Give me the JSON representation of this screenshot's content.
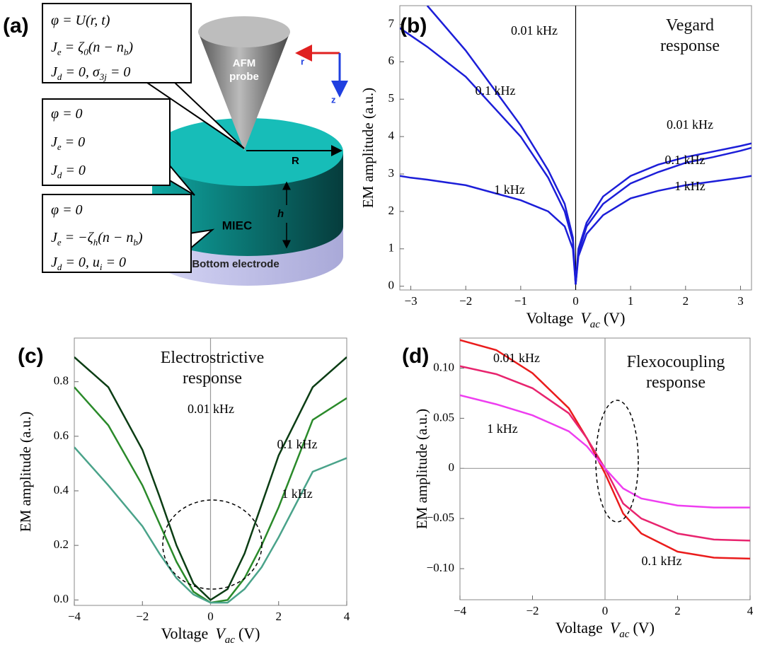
{
  "diagram": {
    "panel_label": "(a)",
    "boxes": [
      [
        [
          "φ = U(r, t)"
        ],
        [
          "J",
          {
            "sub": "e"
          },
          " = ζ",
          {
            "sub": "0"
          },
          "(n − n",
          {
            "sub": "b"
          },
          ")"
        ],
        [
          "J",
          {
            "sub": "d"
          },
          " = 0, σ",
          {
            "sub": "3j"
          },
          " = 0"
        ]
      ],
      [
        [
          "φ = 0"
        ],
        [
          "J",
          {
            "sub": "e"
          },
          " = 0"
        ],
        [
          "J",
          {
            "sub": "d"
          },
          " = 0"
        ]
      ],
      [
        [
          "φ = 0"
        ],
        [
          "J",
          {
            "sub": "e"
          },
          " = −ζ",
          {
            "sub": "h"
          },
          "(n − n",
          {
            "sub": "b"
          },
          ")"
        ],
        [
          "J",
          {
            "sub": "d"
          },
          " = 0, u",
          {
            "sub": "i"
          },
          " = 0"
        ]
      ]
    ],
    "probe_label": "AFM probe",
    "radius_label": "R",
    "height_label": "h",
    "layer_label": "MIEC",
    "electrode_label": "Bottom electrode",
    "axis_r": "r",
    "axis_z": "z"
  },
  "chart_data": [
    {
      "type": "line",
      "panel_label": "(b)",
      "title": "Vegard response",
      "ylabel": "EM amplitude (a.u.)",
      "xlabel": {
        "text": "Voltage",
        "var": "V",
        "sub": "ac",
        "unit": "(V)"
      },
      "x": [
        -3.2,
        -3,
        -2.7,
        -2,
        -1.5,
        -1,
        -0.5,
        -0.2,
        -0.05,
        0,
        0.05,
        0.2,
        0.5,
        1,
        1.5,
        2,
        2.5,
        3,
        3.2
      ],
      "series": [
        {
          "name": "0.01 kHz",
          "color": "#1c1ed8",
          "values": [
            null,
            null,
            7.5,
            6.3,
            5.3,
            4.3,
            3.1,
            2.2,
            1.3,
            0.05,
            1.0,
            1.7,
            2.4,
            2.95,
            3.25,
            3.45,
            3.6,
            3.75,
            3.82
          ]
        },
        {
          "name": "0.1 kHz",
          "color": "#1c1ed8",
          "values": [
            6.9,
            6.7,
            6.4,
            5.6,
            4.8,
            4.0,
            2.9,
            2.0,
            1.2,
            0.05,
            0.9,
            1.6,
            2.2,
            2.75,
            3.05,
            3.3,
            3.45,
            3.62,
            3.7
          ]
        },
        {
          "name": "1 kHz",
          "color": "#1c1ed8",
          "values": [
            2.95,
            2.9,
            2.85,
            2.7,
            2.5,
            2.3,
            2.0,
            1.6,
            1.0,
            0.05,
            0.8,
            1.4,
            1.9,
            2.35,
            2.55,
            2.7,
            2.8,
            2.9,
            2.95
          ]
        }
      ],
      "xlim": [
        -3.2,
        3.2
      ],
      "ylim": [
        -0.1,
        7.5
      ],
      "xticks": [
        {
          "value": -3,
          "label": "−3"
        },
        {
          "value": -2,
          "label": "−2"
        },
        {
          "value": -1,
          "label": "−1"
        },
        0,
        1,
        2,
        3
      ],
      "yticks": [
        0,
        1,
        2,
        3,
        4,
        5,
        6,
        7
      ],
      "grid": false
    },
    {
      "type": "line",
      "panel_label": "(c)",
      "title": "Electrostrictive response",
      "ylabel": "EM amplitude (a.u.)",
      "xlabel": {
        "text": "Voltage",
        "var": "V",
        "sub": "ac",
        "unit": "(V)"
      },
      "x": [
        -4,
        -3,
        -2,
        -1.5,
        -1,
        -0.5,
        0,
        0.5,
        1,
        1.5,
        2,
        3,
        4
      ],
      "series": [
        {
          "name": "0.01 kHz",
          "color": "#0b3d14",
          "values": [
            0.89,
            0.78,
            0.55,
            0.38,
            0.2,
            0.06,
            0.0,
            0.04,
            0.17,
            0.35,
            0.53,
            0.78,
            0.89
          ]
        },
        {
          "name": "0.1 kHz",
          "color": "#2a8a2a",
          "values": [
            0.78,
            0.64,
            0.42,
            0.28,
            0.14,
            0.03,
            -0.01,
            0.0,
            0.08,
            0.2,
            0.34,
            0.66,
            0.74
          ]
        },
        {
          "name": "1 kHz",
          "color": "#4aa38a",
          "values": [
            0.56,
            0.42,
            0.27,
            0.17,
            0.08,
            0.02,
            -0.01,
            -0.01,
            0.04,
            0.12,
            0.23,
            0.47,
            0.52
          ]
        }
      ],
      "xlim": [
        -4,
        4
      ],
      "ylim": [
        -0.02,
        0.96
      ],
      "xticks": [
        {
          "value": -4,
          "label": "−4"
        },
        {
          "value": -2,
          "label": "−2"
        },
        0,
        2,
        4
      ],
      "yticks": [
        {
          "value": 0,
          "label": "0.0"
        },
        0.2,
        0.4,
        0.6,
        0.8
      ],
      "grid": false
    },
    {
      "type": "line",
      "panel_label": "(d)",
      "title": "Flexocoupling response",
      "ylabel": "EM amplitude (a.u.)",
      "xlabel": {
        "text": "Voltage",
        "var": "V",
        "sub": "ac",
        "unit": "(V)"
      },
      "x": [
        -4,
        -3,
        -2,
        -1,
        -0.5,
        0,
        0.5,
        1,
        2,
        3,
        4
      ],
      "series": [
        {
          "name": "0.01 kHz",
          "color": "#ea1c1c",
          "values": [
            0.128,
            0.118,
            0.095,
            0.06,
            0.03,
            -0.005,
            -0.045,
            -0.065,
            -0.083,
            -0.089,
            -0.09
          ]
        },
        {
          "name": "0.1 kHz",
          "color": "#e8246e",
          "values": [
            0.102,
            0.094,
            0.08,
            0.055,
            0.03,
            0.0,
            -0.035,
            -0.05,
            -0.065,
            -0.071,
            -0.072
          ]
        },
        {
          "name": "1 kHz",
          "color": "#ee3ef0",
          "values": [
            0.073,
            0.064,
            0.053,
            0.037,
            0.022,
            0.0,
            -0.02,
            -0.03,
            -0.037,
            -0.039,
            -0.039
          ]
        }
      ],
      "xlim": [
        -4,
        4
      ],
      "ylim": [
        -0.131,
        0.13
      ],
      "xticks": [
        {
          "value": -4,
          "label": "−4"
        },
        {
          "value": -2,
          "label": "−2"
        },
        0,
        2,
        4
      ],
      "yticks": [
        {
          "value": -0.1,
          "label": "−0.10"
        },
        {
          "value": -0.05,
          "label": "−0.05"
        },
        0,
        0.05,
        {
          "value": 0.1,
          "label": "0.10"
        }
      ],
      "grid": false
    }
  ]
}
